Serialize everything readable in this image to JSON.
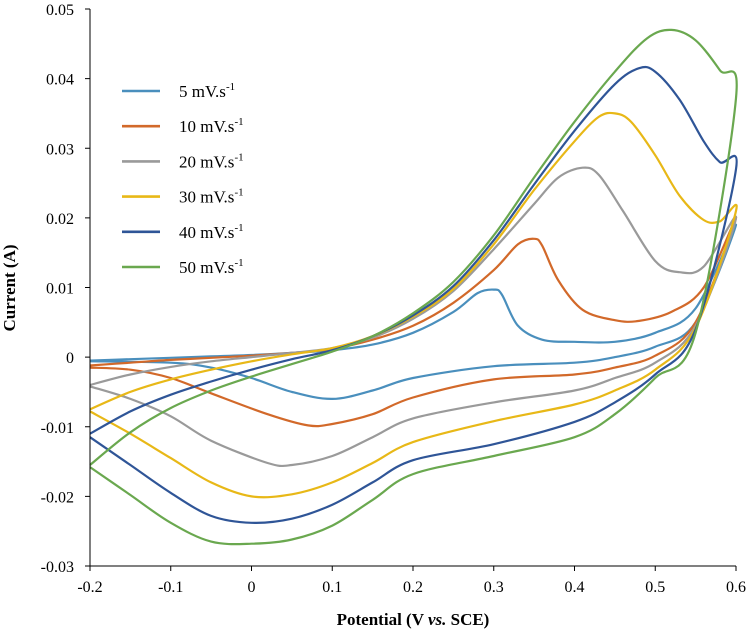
{
  "chart_data": {
    "type": "line",
    "title": "",
    "xlabel_main": "Potential (V ",
    "xlabel_italic": "vs.",
    "xlabel_end": " SCE)",
    "ylabel": "Current  (A)",
    "xlim": [
      -0.2,
      0.6
    ],
    "ylim": [
      -0.03,
      0.05
    ],
    "xticks": [
      -0.2,
      -0.1,
      0,
      0.1,
      0.2,
      0.3,
      0.4,
      0.5,
      0.6
    ],
    "xtick_labels": [
      "-0.2",
      "-0.1",
      "0",
      "0.1",
      "0.2",
      "0.3",
      "0.4",
      "0.5",
      "0.6"
    ],
    "yticks": [
      -0.03,
      -0.02,
      -0.01,
      0,
      0.01,
      0.02,
      0.03,
      0.04,
      0.05
    ],
    "ytick_labels": [
      "-0.03",
      "-0.02",
      "-0.01",
      "0",
      "0.01",
      "0.02",
      "0.03",
      "0.04",
      "0.05"
    ],
    "grid": false,
    "legend_position": "top-left",
    "series": [
      {
        "name": "5 mV.s-1",
        "label_main": "5 mV.s",
        "label_sup": "-1",
        "color": "#4a8fbd",
        "points": [
          [
            -0.2,
            -0.0005
          ],
          [
            -0.15,
            -0.0003
          ],
          [
            -0.1,
            -0.0001
          ],
          [
            -0.05,
            0.0001
          ],
          [
            0,
            0.0003
          ],
          [
            0.05,
            0.0006
          ],
          [
            0.1,
            0.001
          ],
          [
            0.15,
            0.0018
          ],
          [
            0.2,
            0.0035
          ],
          [
            0.25,
            0.0065
          ],
          [
            0.28,
            0.0092
          ],
          [
            0.3,
            0.0097
          ],
          [
            0.31,
            0.009
          ],
          [
            0.33,
            0.0045
          ],
          [
            0.36,
            0.0025
          ],
          [
            0.4,
            0.0022
          ],
          [
            0.45,
            0.0022
          ],
          [
            0.5,
            0.0035
          ],
          [
            0.55,
            0.007
          ],
          [
            0.6,
            0.019
          ],
          [
            0.55,
            0.005
          ],
          [
            0.5,
            0.0015
          ],
          [
            0.45,
            0.0
          ],
          [
            0.4,
            -0.0008
          ],
          [
            0.3,
            -0.0013
          ],
          [
            0.2,
            -0.003
          ],
          [
            0.15,
            -0.0048
          ],
          [
            0.1,
            -0.006
          ],
          [
            0.05,
            -0.005
          ],
          [
            0,
            -0.003
          ],
          [
            -0.05,
            -0.0015
          ],
          [
            -0.1,
            -0.0008
          ],
          [
            -0.2,
            -0.0006
          ]
        ]
      },
      {
        "name": "10 mV.s-1",
        "label_main": "10 mV.s",
        "label_sup": "-1",
        "color": "#d2692a",
        "points": [
          [
            -0.2,
            -0.0012
          ],
          [
            -0.15,
            -0.0008
          ],
          [
            -0.1,
            -0.0004
          ],
          [
            -0.05,
            -0.0001
          ],
          [
            0,
            0.0002
          ],
          [
            0.05,
            0.0006
          ],
          [
            0.1,
            0.0012
          ],
          [
            0.15,
            0.0025
          ],
          [
            0.2,
            0.0045
          ],
          [
            0.25,
            0.0078
          ],
          [
            0.3,
            0.0125
          ],
          [
            0.33,
            0.0162
          ],
          [
            0.35,
            0.017
          ],
          [
            0.36,
            0.016
          ],
          [
            0.38,
            0.011
          ],
          [
            0.41,
            0.0068
          ],
          [
            0.45,
            0.0053
          ],
          [
            0.48,
            0.0052
          ],
          [
            0.52,
            0.0065
          ],
          [
            0.56,
            0.01
          ],
          [
            0.6,
            0.02
          ],
          [
            0.55,
            0.005
          ],
          [
            0.5,
            0.0002
          ],
          [
            0.45,
            -0.0015
          ],
          [
            0.4,
            -0.0025
          ],
          [
            0.3,
            -0.0032
          ],
          [
            0.2,
            -0.0058
          ],
          [
            0.15,
            -0.0082
          ],
          [
            0.1,
            -0.0096
          ],
          [
            0.07,
            -0.0098
          ],
          [
            0.02,
            -0.0082
          ],
          [
            -0.05,
            -0.0052
          ],
          [
            -0.1,
            -0.003
          ],
          [
            -0.15,
            -0.0018
          ],
          [
            -0.2,
            -0.0015
          ]
        ]
      },
      {
        "name": "20 mV.s-1",
        "label_main": "20 mV.s",
        "label_sup": "-1",
        "color": "#9a9a9a",
        "points": [
          [
            -0.2,
            -0.004
          ],
          [
            -0.15,
            -0.0025
          ],
          [
            -0.1,
            -0.0014
          ],
          [
            -0.05,
            -0.0006
          ],
          [
            0,
            0.0
          ],
          [
            0.05,
            0.0006
          ],
          [
            0.1,
            0.0013
          ],
          [
            0.15,
            0.0028
          ],
          [
            0.2,
            0.0055
          ],
          [
            0.25,
            0.0095
          ],
          [
            0.3,
            0.0155
          ],
          [
            0.35,
            0.022
          ],
          [
            0.38,
            0.0258
          ],
          [
            0.41,
            0.0272
          ],
          [
            0.43,
            0.0262
          ],
          [
            0.46,
            0.021
          ],
          [
            0.5,
            0.0138
          ],
          [
            0.53,
            0.0122
          ],
          [
            0.56,
            0.013
          ],
          [
            0.6,
            0.02
          ],
          [
            0.55,
            0.0045
          ],
          [
            0.5,
            -0.0008
          ],
          [
            0.45,
            -0.003
          ],
          [
            0.4,
            -0.0048
          ],
          [
            0.3,
            -0.0065
          ],
          [
            0.2,
            -0.0088
          ],
          [
            0.15,
            -0.0115
          ],
          [
            0.1,
            -0.0142
          ],
          [
            0.05,
            -0.0155
          ],
          [
            0.02,
            -0.0152
          ],
          [
            -0.05,
            -0.012
          ],
          [
            -0.1,
            -0.0085
          ],
          [
            -0.15,
            -0.006
          ],
          [
            -0.2,
            -0.0042
          ]
        ]
      },
      {
        "name": "30 mV.s-1",
        "label_main": "30 mV.s",
        "label_sup": "-1",
        "color": "#e8b817",
        "points": [
          [
            -0.2,
            -0.0075
          ],
          [
            -0.15,
            -0.005
          ],
          [
            -0.1,
            -0.0032
          ],
          [
            -0.05,
            -0.0018
          ],
          [
            0,
            -0.0006
          ],
          [
            0.05,
            0.0004
          ],
          [
            0.1,
            0.0013
          ],
          [
            0.15,
            0.003
          ],
          [
            0.2,
            0.0058
          ],
          [
            0.25,
            0.0098
          ],
          [
            0.3,
            0.0162
          ],
          [
            0.35,
            0.024
          ],
          [
            0.4,
            0.031
          ],
          [
            0.43,
            0.0345
          ],
          [
            0.45,
            0.035
          ],
          [
            0.47,
            0.0338
          ],
          [
            0.5,
            0.029
          ],
          [
            0.53,
            0.0232
          ],
          [
            0.56,
            0.0197
          ],
          [
            0.58,
            0.0195
          ],
          [
            0.6,
            0.021
          ],
          [
            0.55,
            0.0042
          ],
          [
            0.5,
            -0.0018
          ],
          [
            0.45,
            -0.0048
          ],
          [
            0.4,
            -0.0068
          ],
          [
            0.3,
            -0.0092
          ],
          [
            0.2,
            -0.0122
          ],
          [
            0.15,
            -0.0152
          ],
          [
            0.1,
            -0.018
          ],
          [
            0.05,
            -0.0197
          ],
          [
            0.0,
            -0.02
          ],
          [
            -0.05,
            -0.018
          ],
          [
            -0.1,
            -0.0145
          ],
          [
            -0.15,
            -0.011
          ],
          [
            -0.2,
            -0.0078
          ]
        ]
      },
      {
        "name": "40 mV.s-1",
        "label_main": "40 mV.s",
        "label_sup": "-1",
        "color": "#2f5597",
        "points": [
          [
            -0.2,
            -0.011
          ],
          [
            -0.15,
            -0.0078
          ],
          [
            -0.1,
            -0.0054
          ],
          [
            -0.05,
            -0.0035
          ],
          [
            0,
            -0.0018
          ],
          [
            0.05,
            -0.0003
          ],
          [
            0.1,
            0.001
          ],
          [
            0.15,
            0.003
          ],
          [
            0.2,
            0.006
          ],
          [
            0.25,
            0.0102
          ],
          [
            0.3,
            0.0168
          ],
          [
            0.35,
            0.0248
          ],
          [
            0.4,
            0.0325
          ],
          [
            0.45,
            0.0392
          ],
          [
            0.48,
            0.0415
          ],
          [
            0.5,
            0.041
          ],
          [
            0.53,
            0.037
          ],
          [
            0.56,
            0.031
          ],
          [
            0.58,
            0.028
          ],
          [
            0.6,
            0.027
          ],
          [
            0.55,
            0.004
          ],
          [
            0.5,
            -0.0025
          ],
          [
            0.45,
            -0.0065
          ],
          [
            0.4,
            -0.0093
          ],
          [
            0.3,
            -0.0125
          ],
          [
            0.2,
            -0.0148
          ],
          [
            0.15,
            -0.018
          ],
          [
            0.1,
            -0.0212
          ],
          [
            0.05,
            -0.0232
          ],
          [
            0.0,
            -0.0238
          ],
          [
            -0.05,
            -0.0228
          ],
          [
            -0.1,
            -0.0195
          ],
          [
            -0.15,
            -0.0155
          ],
          [
            -0.2,
            -0.0115
          ]
        ]
      },
      {
        "name": "50 mV.s-1",
        "label_main": "50 mV.s",
        "label_sup": "-1",
        "color": "#6aa84f",
        "points": [
          [
            -0.2,
            -0.0155
          ],
          [
            -0.15,
            -0.0108
          ],
          [
            -0.1,
            -0.0073
          ],
          [
            -0.05,
            -0.0048
          ],
          [
            0,
            -0.0028
          ],
          [
            0.05,
            -0.001
          ],
          [
            0.1,
            0.0008
          ],
          [
            0.15,
            0.003
          ],
          [
            0.2,
            0.0063
          ],
          [
            0.25,
            0.0108
          ],
          [
            0.3,
            0.0175
          ],
          [
            0.35,
            0.0258
          ],
          [
            0.4,
            0.0338
          ],
          [
            0.45,
            0.041
          ],
          [
            0.49,
            0.0458
          ],
          [
            0.52,
            0.047
          ],
          [
            0.55,
            0.0455
          ],
          [
            0.58,
            0.0412
          ],
          [
            0.6,
            0.0372
          ],
          [
            0.55,
            0.0035
          ],
          [
            0.5,
            -0.003
          ],
          [
            0.45,
            -0.0082
          ],
          [
            0.4,
            -0.0115
          ],
          [
            0.3,
            -0.0142
          ],
          [
            0.2,
            -0.0168
          ],
          [
            0.15,
            -0.0205
          ],
          [
            0.1,
            -0.0242
          ],
          [
            0.05,
            -0.0262
          ],
          [
            0.0,
            -0.0268
          ],
          [
            -0.05,
            -0.0265
          ],
          [
            -0.1,
            -0.0238
          ],
          [
            -0.15,
            -0.0198
          ],
          [
            -0.2,
            -0.0158
          ]
        ]
      }
    ]
  }
}
